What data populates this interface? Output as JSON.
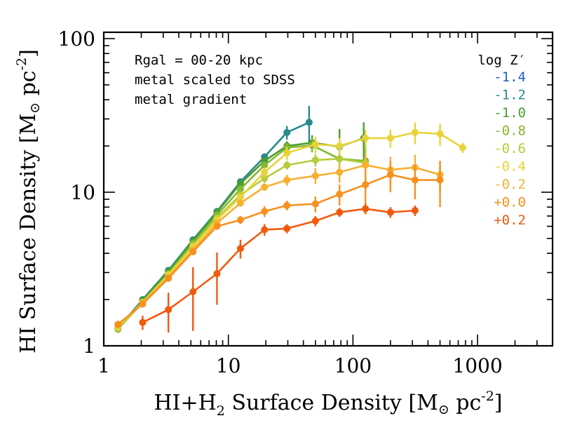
{
  "chart_data": {
    "type": "line",
    "xlabel_main": "HI+H",
    "xlabel_sub": "2",
    "xlabel_unit_open": " Surface Density [M",
    "xlabel_unit_close": " pc",
    "xlabel_exp": "-2",
    "xlabel_end": "]",
    "ylabel_main": "HI Surface Density [M",
    "ylabel_unit_close": " pc",
    "ylabel_exp": "-2",
    "ylabel_end": "]",
    "sun_symbol": "⊙",
    "x_scale": "log",
    "y_scale": "log",
    "xlim": [
      1,
      4000
    ],
    "ylim": [
      1,
      110
    ],
    "x_ticks": [
      1,
      10,
      100,
      1000
    ],
    "x_tick_labels": [
      "1",
      "10",
      "100",
      "1000"
    ],
    "y_ticks": [
      1,
      10,
      100
    ],
    "y_tick_labels": [
      "1",
      "10",
      "100"
    ],
    "annotation": [
      "Rgal = 00-20 kpc",
      "metal scaled to SDSS",
      "metal gradient"
    ],
    "legend_title": "log Z′",
    "legend_position": "top-right",
    "series": [
      {
        "name": "-1.4",
        "color": "#1f5fc4",
        "points": []
      },
      {
        "name": "-1.2",
        "color": "#2a8a8a",
        "points": [
          [
            1.3,
            1.3,
            0.05
          ],
          [
            2.05,
            2.0,
            0.05
          ],
          [
            3.3,
            3.1,
            0.08
          ],
          [
            5.2,
            4.9,
            0.12
          ],
          [
            8.1,
            7.5,
            0.2
          ],
          [
            12.5,
            11.7,
            0.35
          ],
          [
            19.5,
            17.0,
            0.7
          ],
          [
            29.5,
            24.5,
            2.5
          ],
          [
            44.5,
            28.5,
            8.0
          ]
        ]
      },
      {
        "name": "-1.0",
        "color": "#4a9e2d",
        "points": [
          [
            1.3,
            1.29,
            0.05
          ],
          [
            2.05,
            1.97,
            0.05
          ],
          [
            3.3,
            3.05,
            0.08
          ],
          [
            5.2,
            4.8,
            0.12
          ],
          [
            8.1,
            7.4,
            0.2
          ],
          [
            12.5,
            11.4,
            0.35
          ],
          [
            19.5,
            16.0,
            0.8
          ],
          [
            29.5,
            20.0,
            1.5
          ],
          [
            47,
            21.0,
            2.5
          ],
          [
            78,
            19.8,
            6.0
          ],
          [
            122,
            22.5,
            6.0
          ]
        ]
      },
      {
        "name": "-0.8",
        "color": "#84b832",
        "points": [
          [
            1.3,
            1.28,
            0.05
          ],
          [
            2.05,
            1.93,
            0.05
          ],
          [
            3.3,
            2.95,
            0.08
          ],
          [
            5.2,
            4.65,
            0.12
          ],
          [
            8.1,
            7.1,
            0.2
          ],
          [
            12.5,
            10.5,
            0.35
          ],
          [
            19.5,
            15.0,
            0.8
          ],
          [
            29.5,
            19.5,
            1.2
          ],
          [
            47,
            20.2,
            2.0
          ],
          [
            78,
            16.5,
            4.0
          ],
          [
            126,
            16.0,
            6.0
          ]
        ]
      },
      {
        "name": "-0.6",
        "color": "#b8cc3a",
        "points": [
          [
            1.3,
            1.3,
            0.05
          ],
          [
            2.05,
            1.9,
            0.05
          ],
          [
            3.3,
            2.9,
            0.08
          ],
          [
            5.2,
            4.5,
            0.12
          ],
          [
            8.1,
            6.8,
            0.2
          ],
          [
            12.5,
            9.6,
            0.35
          ],
          [
            19.5,
            12.3,
            0.8
          ],
          [
            29.5,
            15.0,
            1.0
          ],
          [
            50,
            16.2,
            1.5
          ],
          [
            78,
            16.5,
            2.5
          ],
          [
            126,
            15.5,
            4.0
          ]
        ]
      },
      {
        "name": "-0.4",
        "color": "#e8d43a",
        "points": [
          [
            1.3,
            1.33,
            0.05
          ],
          [
            2.05,
            1.92,
            0.05
          ],
          [
            3.3,
            2.9,
            0.08
          ],
          [
            5.2,
            4.4,
            0.12
          ],
          [
            8.1,
            6.6,
            0.2
          ],
          [
            12.5,
            9.3,
            0.35
          ],
          [
            19.5,
            13.5,
            1.0
          ],
          [
            29.5,
            18.0,
            1.8
          ],
          [
            50,
            20.5,
            2.5
          ],
          [
            78,
            20.0,
            2.5
          ],
          [
            126,
            22.5,
            3.0
          ],
          [
            200,
            22.5,
            3.0
          ],
          [
            315,
            24.5,
            4.0
          ],
          [
            500,
            24.0,
            4.0
          ],
          [
            760,
            19.5,
            1.5
          ]
        ]
      },
      {
        "name": "-0.2",
        "color": "#f7b030",
        "points": [
          [
            1.3,
            1.36,
            0.05
          ],
          [
            2.05,
            1.9,
            0.05
          ],
          [
            3.3,
            2.8,
            0.08
          ],
          [
            5.2,
            4.2,
            0.12
          ],
          [
            8.1,
            6.3,
            0.2
          ],
          [
            12.5,
            8.5,
            0.4
          ],
          [
            19.5,
            10.8,
            0.6
          ],
          [
            29.5,
            12.0,
            1.0
          ],
          [
            50,
            12.8,
            1.5
          ],
          [
            78,
            13.5,
            2.0
          ],
          [
            126,
            15.0,
            3.0
          ],
          [
            200,
            14.0,
            3.0
          ],
          [
            315,
            14.5,
            3.0
          ],
          [
            500,
            13.0,
            3.0
          ]
        ]
      },
      {
        "name": "+0.0",
        "color": "#f7901e",
        "points": [
          [
            1.3,
            1.38,
            0.05
          ],
          [
            2.05,
            1.87,
            0.05
          ],
          [
            3.3,
            2.75,
            0.08
          ],
          [
            5.2,
            4.1,
            0.12
          ],
          [
            8.1,
            6.0,
            0.2
          ],
          [
            12.5,
            6.6,
            0.4
          ],
          [
            19.5,
            7.5,
            0.6
          ],
          [
            29.5,
            8.2,
            0.6
          ],
          [
            50,
            8.4,
            1.0
          ],
          [
            78,
            9.7,
            1.5
          ],
          [
            126,
            11.2,
            3.0
          ],
          [
            200,
            13.0,
            3.0
          ],
          [
            315,
            12.0,
            3.0
          ],
          [
            500,
            12.0,
            4.0
          ]
        ]
      },
      {
        "name": "+0.2",
        "color": "#f25a0f",
        "points": [
          [
            2.05,
            1.42,
            0.15
          ],
          [
            3.3,
            1.72,
            0.5
          ],
          [
            5.2,
            2.25,
            1.0
          ],
          [
            8.1,
            2.95,
            1.1
          ],
          [
            12.5,
            4.3,
            0.6
          ],
          [
            19.5,
            5.7,
            0.5
          ],
          [
            29.5,
            5.8,
            0.4
          ],
          [
            50,
            6.5,
            0.5
          ],
          [
            78,
            7.4,
            0.5
          ],
          [
            126,
            7.8,
            0.6
          ],
          [
            200,
            7.4,
            0.6
          ],
          [
            315,
            7.6,
            0.6
          ]
        ]
      }
    ]
  }
}
